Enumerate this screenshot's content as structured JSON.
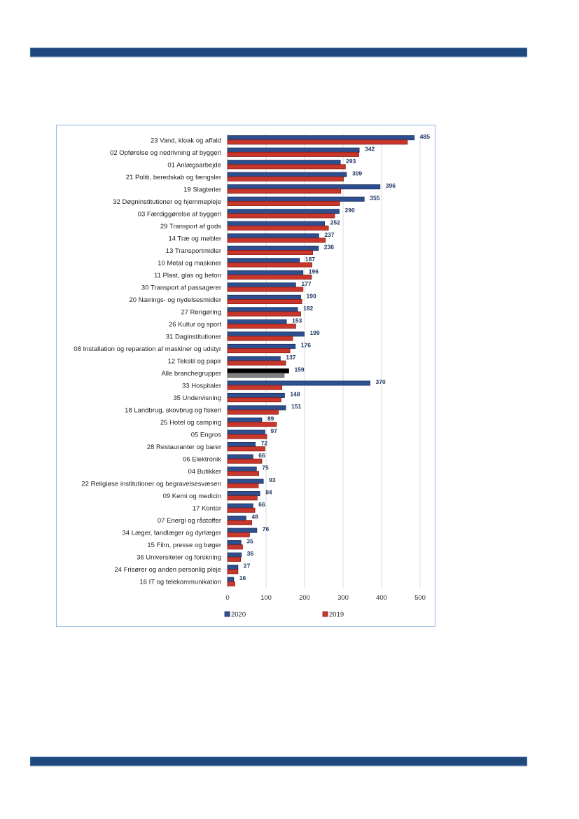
{
  "chart_data": {
    "type": "bar",
    "orientation": "horizontal",
    "title": "",
    "xlabel": "",
    "ylabel": "",
    "xlim": [
      0,
      500
    ],
    "xticks": [
      "0",
      "100",
      "200",
      "300",
      "400",
      "500"
    ],
    "grid": true,
    "legend_position": "bottom",
    "categories": [
      "23 Vand, kloak og affald",
      "02 Opførelse og nedrivning af byggeri",
      "01 Anlægsarbejde",
      "21 Politi, beredskab og fængsler",
      "19 Slagterier",
      "32 Døgninstitutioner og hjemmepleje",
      "03 Færdiggørelse af byggeri",
      "29 Transport af gods",
      "14 Træ og møbler",
      "13 Transportmidler",
      "10 Metal og maskiner",
      "11 Plast, glas og beton",
      "30 Transport af passagerer",
      "20 Nærings- og nydelsesmidler",
      "27 Rengøring",
      "26 Kultur og sport",
      "31 Daginstitutioner",
      "08 Installation og reparation af maskiner og udstyr",
      "12 Tekstil og papir",
      "Alle branchegrupper",
      "33 Hospitaler",
      "35 Undervisning",
      "18 Landbrug, skovbrug og fiskeri",
      "25 Hotel og camping",
      "05 Engros",
      "28 Restauranter og barer",
      "06 Elektronik",
      "04 Butikker",
      "22 Religiøse institutioner og begravelsesvæsen",
      "09 Kemi og medicin",
      "17 Kontor",
      "07 Energi og råstoffer",
      "34 Læger, tandlæger og dyrlæger",
      "15 Film, presse og bøger",
      "36 Universiteter og forskning",
      "24 Frisører og anden personlig pleje",
      "16 IT og telekommunikation"
    ],
    "highlight_category": "Alle branchegrupper",
    "series": [
      {
        "name": "2020",
        "color": "#2e4f8f",
        "highlight_color": "#000000",
        "labeled": true,
        "values": [
          485,
          342,
          293,
          309,
          396,
          355,
          290,
          252,
          237,
          236,
          187,
          196,
          177,
          190,
          182,
          153,
          199,
          176,
          137,
          159,
          370,
          148,
          151,
          89,
          97,
          72,
          66,
          75,
          93,
          84,
          66,
          48,
          76,
          35,
          36,
          27,
          16
        ]
      },
      {
        "name": "2019",
        "color": "#c9372c",
        "highlight_color": "#7f7f7f",
        "labeled": false,
        "values": [
          467,
          341,
          306,
          301,
          294,
          291,
          278,
          262,
          254,
          221,
          219,
          218,
          196,
          193,
          190,
          177,
          169,
          162,
          151,
          147,
          141,
          139,
          132,
          127,
          102,
          97,
          89,
          81,
          80,
          77,
          71,
          63,
          57,
          39,
          34,
          27,
          19
        ]
      }
    ]
  }
}
